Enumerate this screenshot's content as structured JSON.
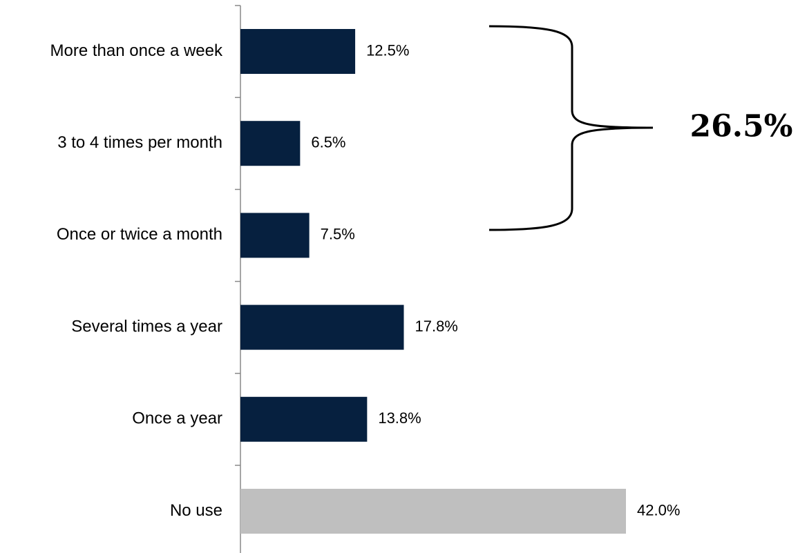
{
  "chart_data": {
    "type": "bar",
    "orientation": "horizontal",
    "categories": [
      "More than once a week",
      "3 to 4 times per month",
      "Once or twice a month",
      "Several times a year",
      "Once a year",
      "No use"
    ],
    "values": [
      12.5,
      6.5,
      7.5,
      17.8,
      13.8,
      42.0
    ],
    "value_labels": [
      "12.5%",
      "6.5%",
      "7.5%",
      "17.8%",
      "13.8%",
      "42.0%"
    ],
    "bar_colors": [
      "#06203f",
      "#06203f",
      "#06203f",
      "#06203f",
      "#06203f",
      "#bfbfbf"
    ],
    "title": "",
    "xlabel": "",
    "ylabel": "",
    "xlim": [
      0,
      42
    ],
    "grid": false,
    "legend": "none",
    "annotation": {
      "type": "brace",
      "spans_categories": [
        "More than once a week",
        "3 to 4 times per month",
        "Once or twice a month"
      ],
      "text": "26.5%"
    }
  }
}
